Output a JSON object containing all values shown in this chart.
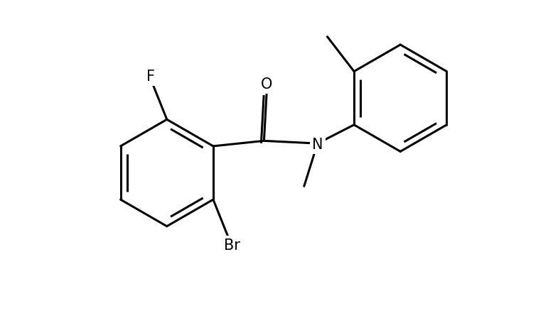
{
  "background_color": "#ffffff",
  "line_color": "#000000",
  "line_width": 2.2,
  "font_size": 15,
  "figsize": [
    7.78,
    4.72
  ],
  "dpi": 100,
  "xlim": [
    -4.5,
    5.0
  ],
  "ylim": [
    -3.2,
    3.0
  ]
}
